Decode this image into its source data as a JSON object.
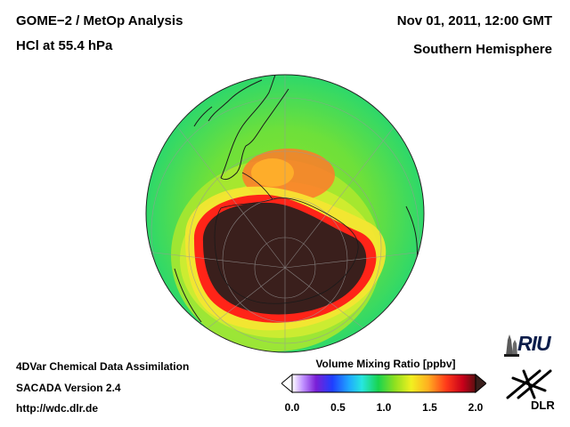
{
  "header": {
    "title_line1": "GOME−2 / MetOp Analysis",
    "title_line2": "HCl at 55.4 hPa",
    "datetime": "Nov 01, 2011, 12:00 GMT",
    "region": "Southern Hemisphere"
  },
  "footer": {
    "line1": "4DVar Chemical Data Assimilation",
    "line2": "SACADA Version 2.4",
    "url": "http://wdc.dlr.de"
  },
  "colorbar": {
    "title": "Volume Mixing Ratio [ppbv]",
    "min": 0.0,
    "max": 2.0,
    "ticks": [
      "0.0",
      "0.5",
      "1.0",
      "1.5",
      "2.0"
    ],
    "colors": [
      "#ffffff",
      "#7a1fd6",
      "#1f3fff",
      "#1fa8ff",
      "#27e6e0",
      "#19d44e",
      "#8fe020",
      "#f2f020",
      "#ffb020",
      "#ff3a1a",
      "#c8001a",
      "#5a1010"
    ]
  },
  "map": {
    "projection": "orthographic",
    "hemisphere": "south",
    "palette": {
      "background_field": "#2ed86a",
      "midlatitude_band": "#9ee830",
      "polar_vortex_inner": "#3a1f1c",
      "vortex_edge": "#ff2418",
      "collar": "#f6e632",
      "high_patch": "#ff5a2a",
      "coastline": "#1a1a1a",
      "graticule": "#808080"
    }
  },
  "logos": {
    "riu": "RIU",
    "dlr": "DLR"
  }
}
